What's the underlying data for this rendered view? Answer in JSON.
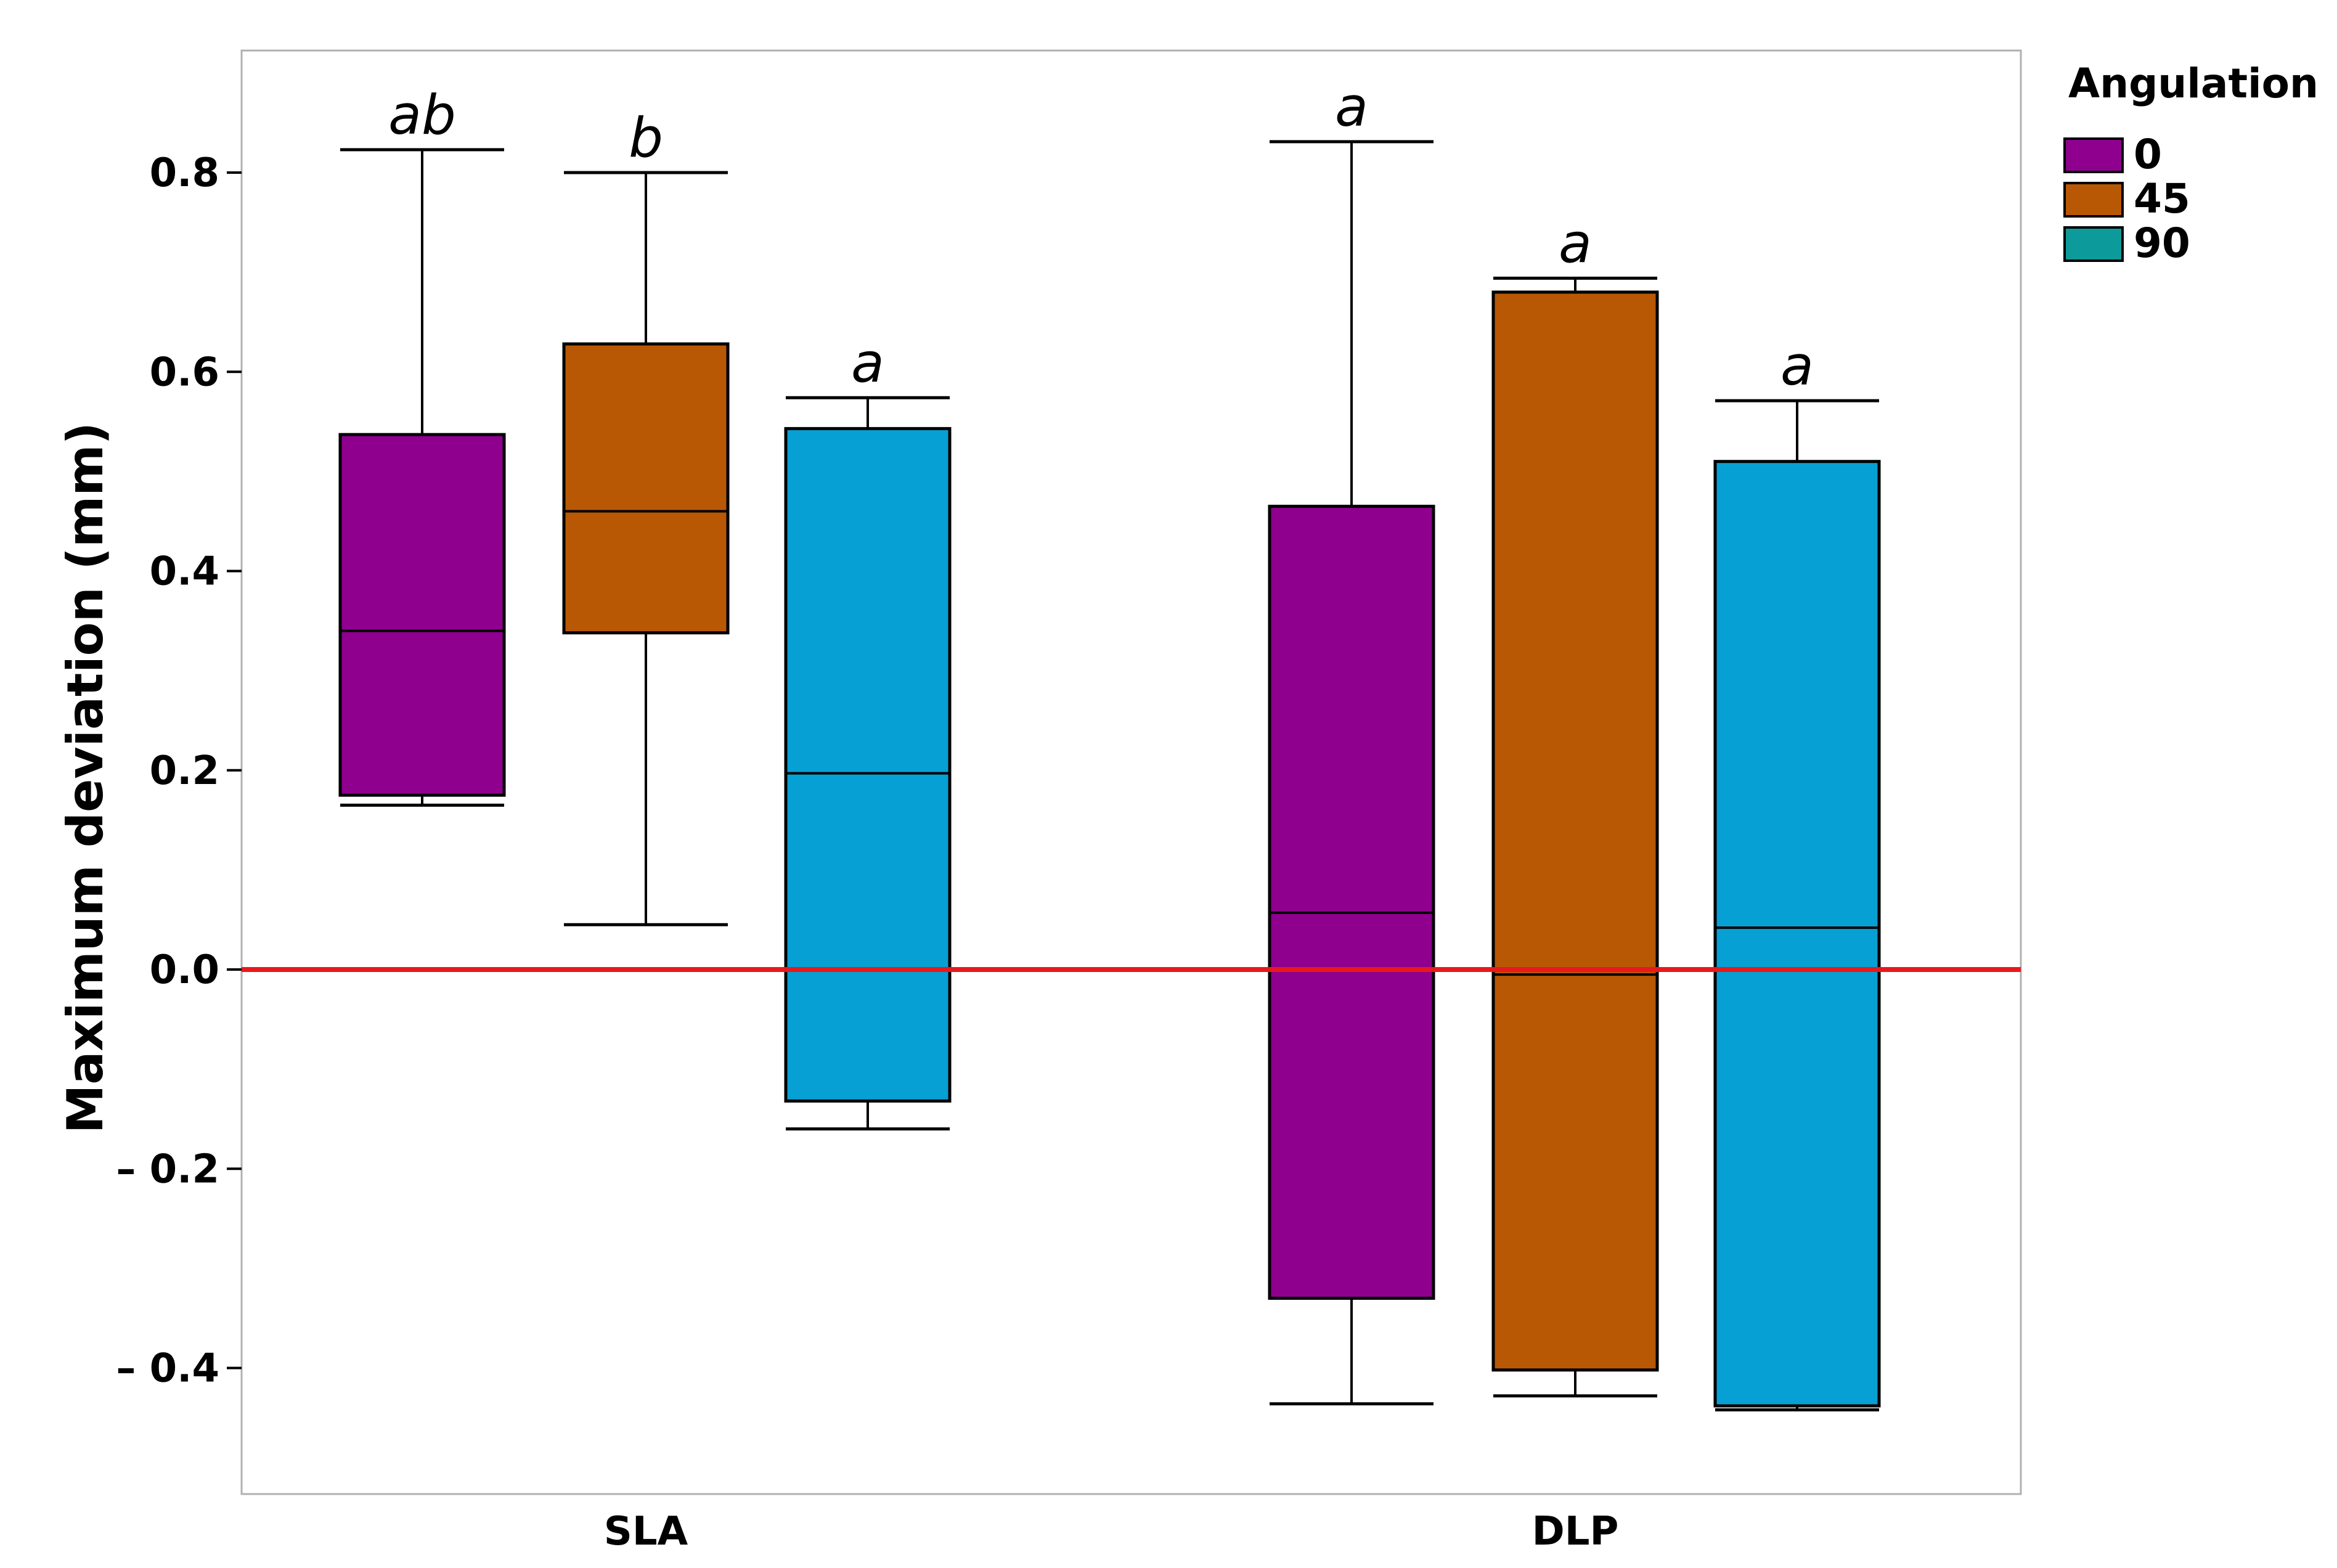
{
  "chart_data": {
    "type": "box",
    "title": "",
    "xlabel": "",
    "ylabel": "Maximum deviation (mm)",
    "ylim": [
      -0.52,
      0.92
    ],
    "yticks": [
      0.8,
      0.6,
      0.4,
      0.2,
      0.0,
      -0.2,
      -0.4
    ],
    "ytick_labels": [
      "0.8",
      "0.6",
      "0.4",
      "0.2",
      "0.0",
      "– 0.2",
      "– 0.4"
    ],
    "categories": [
      "SLA",
      "DLP"
    ],
    "reference_line": {
      "value": 0.0,
      "color": "#e8191c"
    },
    "legend": {
      "title": "Angulation",
      "position": "right-top",
      "entries": [
        {
          "label": "0",
          "color": "#8f008f"
        },
        {
          "label": "45",
          "color": "#b85805"
        },
        {
          "label": "90",
          "color": "#0d9a9a"
        }
      ]
    },
    "series": [
      {
        "name": "0",
        "color": "#8f008f",
        "boxes": [
          {
            "category": "SLA",
            "whisker_low": 0.165,
            "q1": 0.175,
            "median": 0.34,
            "q3": 0.537,
            "whisker_high": 0.823,
            "letter": "ab"
          },
          {
            "category": "DLP",
            "whisker_low": -0.436,
            "q1": -0.33,
            "median": 0.057,
            "q3": 0.465,
            "whisker_high": 0.831,
            "letter": "a"
          }
        ]
      },
      {
        "name": "45",
        "color": "#b85805",
        "boxes": [
          {
            "category": "SLA",
            "whisker_low": 0.045,
            "q1": 0.338,
            "median": 0.46,
            "q3": 0.628,
            "whisker_high": 0.8,
            "letter": "b"
          },
          {
            "category": "DLP",
            "whisker_low": -0.428,
            "q1": -0.402,
            "median": -0.005,
            "q3": 0.68,
            "whisker_high": 0.694,
            "letter": "a"
          }
        ]
      },
      {
        "name": "90",
        "color": "#07a0d4",
        "boxes": [
          {
            "category": "SLA",
            "whisker_low": -0.16,
            "q1": -0.132,
            "median": 0.197,
            "q3": 0.543,
            "whisker_high": 0.574,
            "letter": "a"
          },
          {
            "category": "DLP",
            "whisker_low": -0.442,
            "q1": -0.438,
            "median": 0.042,
            "q3": 0.51,
            "whisker_high": 0.571,
            "letter": "a"
          }
        ]
      }
    ]
  }
}
